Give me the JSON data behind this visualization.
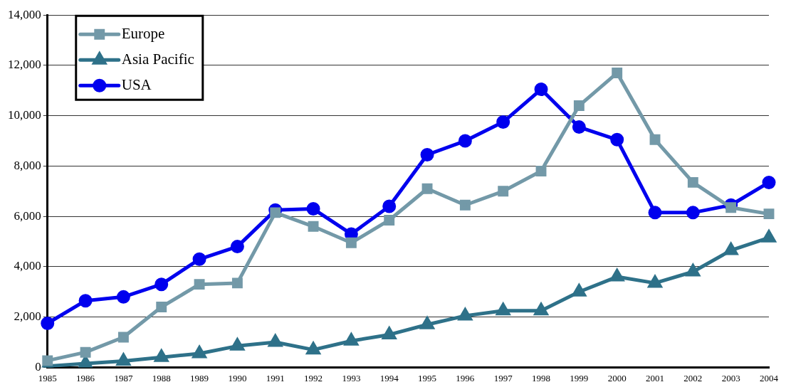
{
  "chart_data": {
    "type": "line",
    "categories": [
      "1985",
      "1986",
      "1987",
      "1988",
      "1989",
      "1990",
      "1991",
      "1992",
      "1993",
      "1994",
      "1995",
      "1996",
      "1997",
      "1998",
      "1999",
      "2000",
      "2001",
      "2002",
      "2003",
      "2004"
    ],
    "series": [
      {
        "name": "Europe",
        "color": "#7399a8",
        "marker": "square",
        "values": [
          270,
          600,
          1200,
          2400,
          3300,
          3350,
          6150,
          5600,
          4950,
          5850,
          7100,
          6450,
          7000,
          7800,
          10400,
          11700,
          9050,
          7350,
          6350,
          6100
        ]
      },
      {
        "name": "Asia Pacific",
        "color": "#2e7189",
        "marker": "triangle",
        "values": [
          50,
          150,
          250,
          400,
          550,
          850,
          1000,
          700,
          1050,
          1300,
          1700,
          2050,
          2250,
          2250,
          3000,
          3600,
          3350,
          3800,
          4650,
          5150
        ]
      },
      {
        "name": "USA",
        "color": "#0000ee",
        "marker": "circle",
        "values": [
          1750,
          2650,
          2800,
          3300,
          4300,
          4800,
          6250,
          6300,
          5300,
          6400,
          8450,
          9000,
          9750,
          11050,
          9550,
          9050,
          6150,
          6150,
          6450,
          7350
        ]
      }
    ],
    "ylim": [
      0,
      14000
    ],
    "yticks": [
      {
        "value": 0,
        "label": "0"
      },
      {
        "value": 2000,
        "label": "2,000"
      },
      {
        "value": 4000,
        "label": "4,000"
      },
      {
        "value": 6000,
        "label": "6,000"
      },
      {
        "value": 8000,
        "label": "8,000"
      },
      {
        "value": 10000,
        "label": "10,000"
      },
      {
        "value": 12000,
        "label": "12,000"
      },
      {
        "value": 14000,
        "label": "14,000"
      }
    ],
    "grid": "y",
    "legend": "top left",
    "line_style": "solid"
  }
}
